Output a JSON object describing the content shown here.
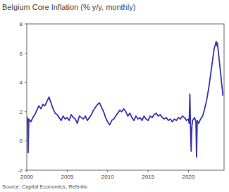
{
  "chart_data": {
    "type": "line",
    "title": "Belgium Core Inflation (% y/y, monthly)",
    "source": "Source: Capital Economics, Refinitiv",
    "x": [
      2000.0,
      2000.08,
      2000.17,
      2000.25,
      2000.5,
      2000.75,
      2001.0,
      2001.25,
      2001.5,
      2001.75,
      2002.0,
      2002.25,
      2002.5,
      2002.75,
      2003.0,
      2003.25,
      2003.5,
      2003.75,
      2004.0,
      2004.25,
      2004.5,
      2004.75,
      2005.0,
      2005.25,
      2005.5,
      2005.75,
      2006.0,
      2006.25,
      2006.5,
      2006.75,
      2007.0,
      2007.25,
      2007.5,
      2007.75,
      2008.0,
      2008.25,
      2008.5,
      2008.75,
      2009.0,
      2009.25,
      2009.5,
      2009.75,
      2010.0,
      2010.25,
      2010.5,
      2010.75,
      2011.0,
      2011.25,
      2011.5,
      2011.75,
      2012.0,
      2012.25,
      2012.5,
      2012.75,
      2013.0,
      2013.25,
      2013.5,
      2013.75,
      2014.0,
      2014.25,
      2014.5,
      2014.75,
      2015.0,
      2015.25,
      2015.5,
      2015.75,
      2016.0,
      2016.25,
      2016.5,
      2016.75,
      2017.0,
      2017.25,
      2017.5,
      2017.75,
      2018.0,
      2018.25,
      2018.5,
      2018.75,
      2019.0,
      2019.25,
      2019.5,
      2019.75,
      2020.0,
      2020.08,
      2020.17,
      2020.25,
      2020.33,
      2020.42,
      2020.5,
      2020.75,
      2020.92,
      2021.0,
      2021.08,
      2021.25,
      2021.5,
      2021.75,
      2022.0,
      2022.25,
      2022.5,
      2022.75,
      2023.0,
      2023.17,
      2023.33,
      2023.42,
      2023.5,
      2023.58,
      2023.67,
      2023.75,
      2023.92,
      2024.0,
      2024.08,
      2024.17,
      2024.25
    ],
    "series": [
      {
        "name": "Belgium Core Inflation",
        "color": "#3a36b2",
        "values": [
          1.2,
          1.6,
          -0.8,
          1.5,
          1.3,
          1.6,
          1.8,
          2.1,
          2.4,
          2.2,
          2.5,
          2.4,
          2.7,
          3.0,
          2.6,
          2.2,
          1.9,
          1.8,
          1.6,
          1.4,
          1.7,
          1.5,
          1.6,
          1.4,
          1.8,
          1.6,
          1.5,
          1.2,
          1.7,
          1.6,
          1.5,
          1.7,
          1.4,
          1.6,
          1.8,
          2.1,
          2.3,
          2.5,
          2.6,
          2.3,
          2.0,
          1.6,
          1.3,
          1.1,
          1.4,
          1.5,
          1.7,
          1.9,
          2.1,
          2.0,
          2.2,
          2.0,
          1.7,
          1.9,
          1.6,
          1.4,
          1.7,
          1.5,
          1.6,
          1.4,
          1.7,
          1.5,
          1.4,
          1.7,
          1.6,
          1.8,
          1.9,
          1.7,
          1.8,
          1.6,
          1.5,
          1.6,
          1.4,
          1.5,
          1.3,
          1.5,
          1.4,
          1.6,
          1.5,
          1.7,
          1.6,
          1.4,
          1.5,
          1.2,
          3.2,
          0.9,
          -0.7,
          1.0,
          1.4,
          1.6,
          1.3,
          -1.1,
          1.4,
          1.2,
          1.5,
          1.7,
          2.2,
          2.8,
          3.6,
          4.6,
          5.6,
          6.3,
          6.6,
          6.8,
          6.5,
          6.7,
          6.2,
          5.8,
          4.9,
          4.5,
          4.0,
          3.6,
          3.1
        ]
      }
    ],
    "xlim": [
      2000,
      2024.4
    ],
    "ylim": [
      -2,
      8
    ],
    "xticks": [
      2000,
      2005,
      2010,
      2015,
      2020
    ],
    "yticks": [
      -2,
      0,
      2,
      4,
      6,
      8
    ],
    "grid": false
  }
}
